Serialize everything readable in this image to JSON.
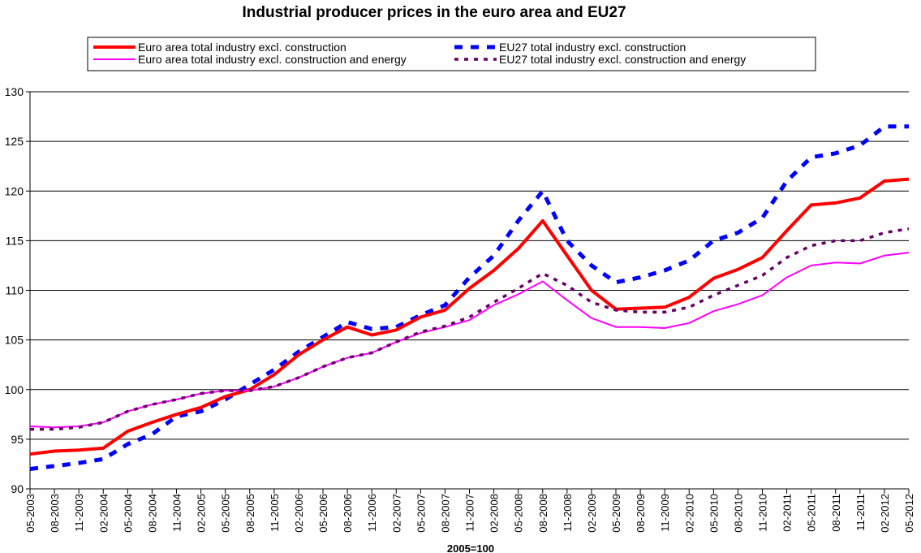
{
  "chart_data": {
    "type": "line",
    "title": "Industrial producer prices in the euro area and EU27",
    "xlabel": "2005=100",
    "ylabel": "",
    "ylim": [
      90,
      130
    ],
    "yticks": [
      "90",
      "95",
      "100",
      "105",
      "110",
      "115",
      "120",
      "125",
      "130"
    ],
    "grid": "horizontal",
    "legend_position": "top",
    "categories": [
      "05-2003",
      "08-2003",
      "11-2003",
      "02-2004",
      "05-2004",
      "08-2004",
      "11-2004",
      "02-2005",
      "05-2005",
      "08-2005",
      "11-2005",
      "02-2006",
      "05-2006",
      "08-2006",
      "11-2006",
      "02-2007",
      "05-2007",
      "08-2007",
      "11-2007",
      "02-2008",
      "05-2008",
      "08-2008",
      "11-2008",
      "02-2009",
      "05-2009",
      "08-2009",
      "11-2009",
      "02-2010",
      "05-2010",
      "08-2010",
      "11-2010",
      "02-2011",
      "05-2011",
      "08-2011",
      "11-2011",
      "02-2012",
      "05-2012"
    ],
    "series": [
      {
        "name": "Euro area total industry excl. construction",
        "color": "#ff0000",
        "style": "solid-thick",
        "values": [
          93.5,
          93.8,
          93.9,
          94.1,
          95.8,
          96.7,
          97.5,
          98.2,
          99.3,
          100.0,
          101.5,
          103.5,
          105.0,
          106.3,
          105.5,
          106.0,
          107.3,
          108.0,
          110.2,
          112.0,
          114.2,
          117.0,
          113.5,
          110.0,
          108.1,
          108.2,
          108.3,
          109.3,
          111.2,
          112.1,
          113.3,
          116.0,
          118.6,
          118.8,
          119.3,
          121.0,
          121.2
        ]
      },
      {
        "name": "EU27 total industry excl. construction",
        "color": "#0000ff",
        "style": "dashed",
        "values": [
          92.0,
          92.3,
          92.6,
          93.0,
          94.5,
          95.5,
          97.3,
          97.8,
          99.0,
          100.5,
          102.0,
          103.8,
          105.3,
          106.8,
          106.1,
          106.3,
          107.5,
          108.5,
          111.3,
          113.5,
          117.0,
          120.0,
          115.0,
          112.5,
          110.8,
          111.3,
          112.0,
          113.0,
          115.0,
          115.8,
          117.3,
          121.0,
          123.4,
          123.8,
          124.6,
          126.5,
          126.5
        ]
      },
      {
        "name": "Euro area total industry excl. construction and energy",
        "color": "#ff00ff",
        "style": "solid-thin",
        "values": [
          96.3,
          96.2,
          96.3,
          96.7,
          97.8,
          98.5,
          99.0,
          99.6,
          99.9,
          99.9,
          100.3,
          101.2,
          102.3,
          103.2,
          103.7,
          104.8,
          105.7,
          106.3,
          107.0,
          108.5,
          109.6,
          110.9,
          109.0,
          107.2,
          106.3,
          106.3,
          106.2,
          106.7,
          107.9,
          108.6,
          109.5,
          111.3,
          112.5,
          112.8,
          112.7,
          113.5,
          113.8
        ]
      },
      {
        "name": "EU27 total industry excl. construction and energy",
        "color": "#660066",
        "style": "dotted",
        "values": [
          96.0,
          96.0,
          96.2,
          96.7,
          97.8,
          98.5,
          99.0,
          99.6,
          99.9,
          99.9,
          100.3,
          101.2,
          102.3,
          103.2,
          103.7,
          104.8,
          105.8,
          106.4,
          107.3,
          108.8,
          110.2,
          111.7,
          110.5,
          108.8,
          108.0,
          107.8,
          107.8,
          108.3,
          109.5,
          110.5,
          111.5,
          113.3,
          114.5,
          115.0,
          115.0,
          115.8,
          116.2
        ]
      }
    ]
  }
}
